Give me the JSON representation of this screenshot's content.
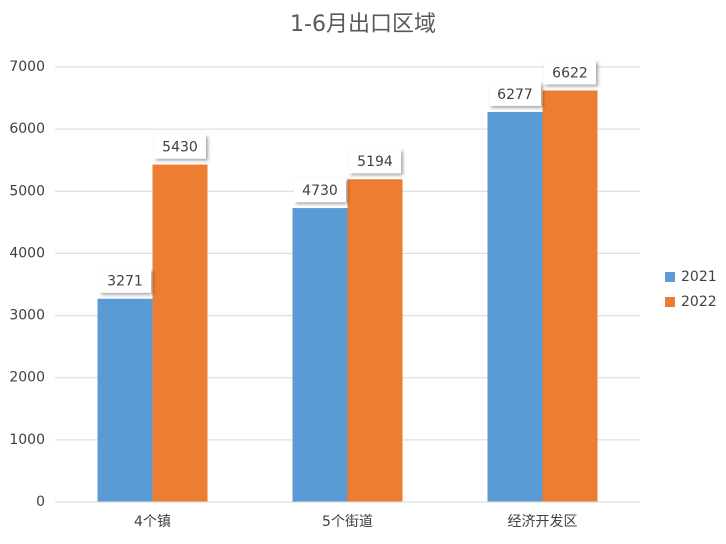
{
  "chart_data": {
    "type": "bar",
    "title": "1-6月出口区域",
    "categories": [
      "4个镇",
      "5个街道",
      "经济开发区"
    ],
    "series": [
      {
        "name": "2021",
        "color": "#5b9bd5",
        "values": [
          3271,
          4730,
          6277
        ]
      },
      {
        "name": "2022",
        "color": "#ed7d31",
        "values": [
          5430,
          5194,
          6622
        ]
      }
    ],
    "ylim": [
      0,
      7000
    ],
    "yticks": [
      0,
      1000,
      2000,
      3000,
      4000,
      5000,
      6000,
      7000
    ],
    "grid": true,
    "legend": "right",
    "data_labels": true
  }
}
